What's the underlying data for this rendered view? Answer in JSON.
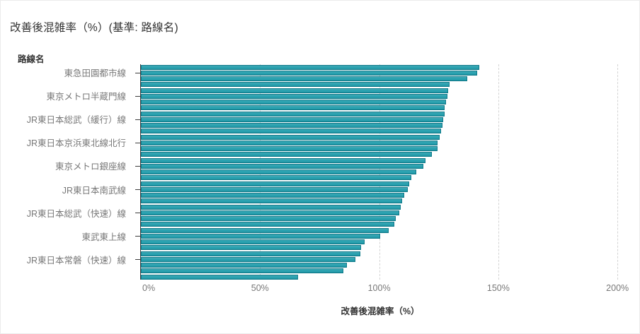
{
  "title": "改善後混雑率（%）(基準: 路線名)",
  "y_axis": {
    "header": "路線名"
  },
  "x_axis": {
    "label": "改善後混雑率（%）",
    "ticks": [
      "0%",
      "50%",
      "100%",
      "150%",
      "200%"
    ],
    "tick_values": [
      0,
      50,
      100,
      150,
      200
    ],
    "max": 205
  },
  "colors": {
    "bar_fill": "#2aa2b0",
    "bar_border": "#0f7a8a",
    "gridline": "#d4d4d4",
    "axis_line": "#3c3c3c",
    "label_text": "#787878",
    "title_text": "#333333"
  },
  "chart_data": {
    "type": "bar",
    "orientation": "horizontal",
    "title": "改善後混雑率（%）(基準: 路線名)",
    "xlabel": "改善後混雑率（%）",
    "ylabel": "路線名",
    "xlim": [
      0,
      205
    ],
    "grid": "dashed-vertical",
    "note": "37 rows sorted descending; only every 4th row is labeled on the axis",
    "rows": [
      {
        "label": "",
        "value": 142
      },
      {
        "label": "東急田園都市線",
        "value": 141
      },
      {
        "label": "",
        "value": 137
      },
      {
        "label": "",
        "value": 129.5
      },
      {
        "label": "",
        "value": 129
      },
      {
        "label": "東京メトロ半蔵門線",
        "value": 128.5
      },
      {
        "label": "",
        "value": 128
      },
      {
        "label": "",
        "value": 127.5
      },
      {
        "label": "",
        "value": 127.5
      },
      {
        "label": "JR東日本総武（緩行）線",
        "value": 127
      },
      {
        "label": "",
        "value": 126.5
      },
      {
        "label": "",
        "value": 126
      },
      {
        "label": "",
        "value": 125.5
      },
      {
        "label": "JR東日本京浜東北線北行",
        "value": 124.5
      },
      {
        "label": "",
        "value": 124.5
      },
      {
        "label": "",
        "value": 122
      },
      {
        "label": "",
        "value": 119.5
      },
      {
        "label": "東京メトロ銀座線",
        "value": 118.5
      },
      {
        "label": "",
        "value": 115.5
      },
      {
        "label": "",
        "value": 113.5
      },
      {
        "label": "",
        "value": 112.5
      },
      {
        "label": "JR東日本南武線",
        "value": 112
      },
      {
        "label": "",
        "value": 110.5
      },
      {
        "label": "",
        "value": 109.5
      },
      {
        "label": "",
        "value": 109
      },
      {
        "label": "JR東日本総武（快速）線",
        "value": 108.5
      },
      {
        "label": "",
        "value": 107
      },
      {
        "label": "",
        "value": 106.5
      },
      {
        "label": "",
        "value": 104
      },
      {
        "label": "東武東上線",
        "value": 100.5
      },
      {
        "label": "",
        "value": 94
      },
      {
        "label": "",
        "value": 92.5
      },
      {
        "label": "",
        "value": 92
      },
      {
        "label": "JR東日本常磐（快速）線",
        "value": 90
      },
      {
        "label": "",
        "value": 86.5
      },
      {
        "label": "",
        "value": 85
      },
      {
        "label": "",
        "value": 66
      }
    ]
  }
}
